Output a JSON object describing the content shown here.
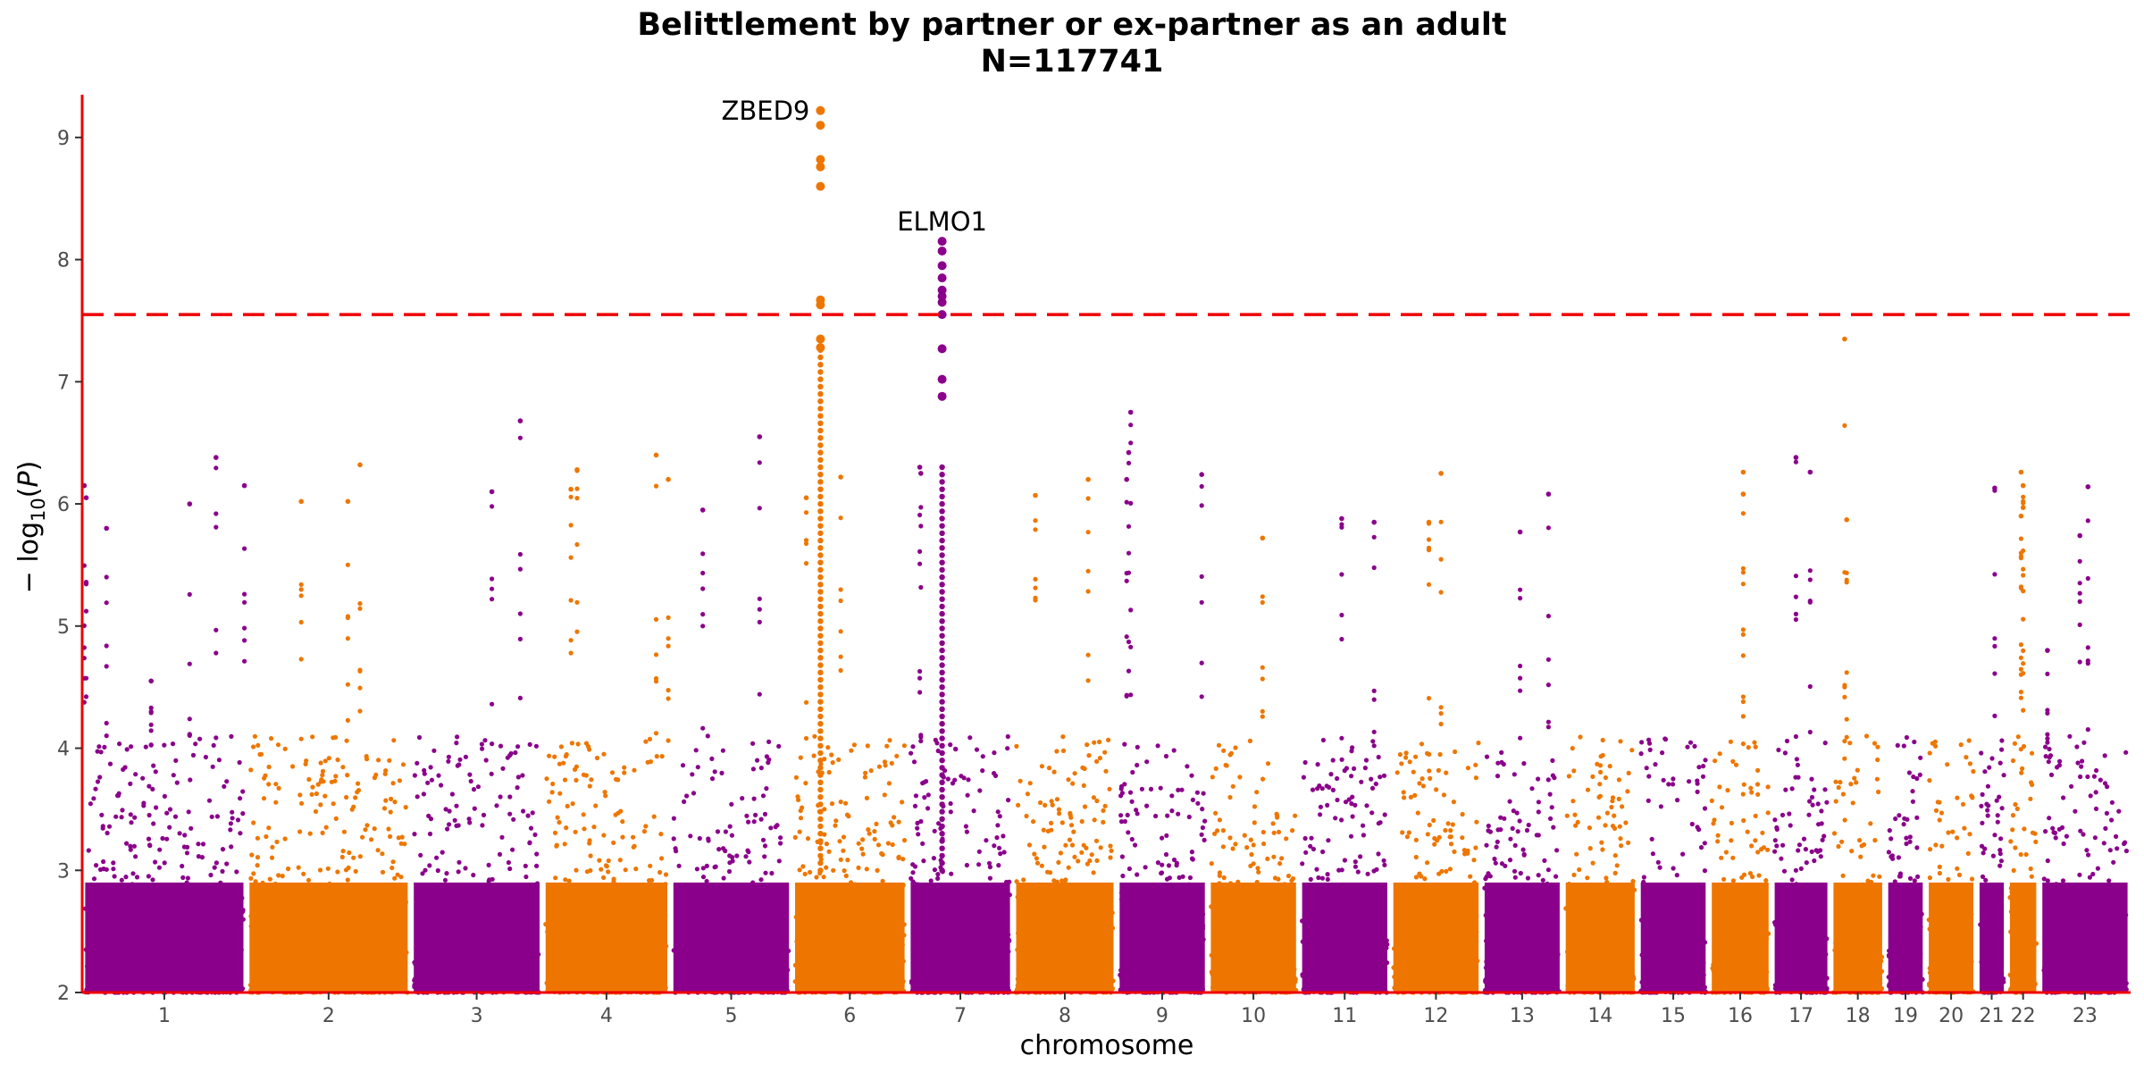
{
  "chart_data": {
    "type": "scatter",
    "subtype": "manhattan",
    "title": "Belittlement by partner or ex-partner as an adult",
    "subtitle": "N=117741",
    "xlabel": "chromosome",
    "ylabel": "− log10(P)",
    "ylim": [
      2,
      9.35
    ],
    "yticks": [
      2,
      3,
      4,
      5,
      6,
      7,
      8,
      9
    ],
    "grid": false,
    "significance_threshold": 7.55,
    "colors": {
      "odd": "#8b008b",
      "even": "#ee7600",
      "threshold": "#ee0000",
      "axis": "#ee0000"
    },
    "chromosomes": [
      {
        "label": "1",
        "start": 0.0,
        "end": 8.1
      },
      {
        "label": "2",
        "start": 8.1,
        "end": 16.2
      },
      {
        "label": "3",
        "start": 16.2,
        "end": 22.7
      },
      {
        "label": "4",
        "start": 22.7,
        "end": 29.0
      },
      {
        "label": "5",
        "start": 29.0,
        "end": 35.0
      },
      {
        "label": "6",
        "start": 35.0,
        "end": 40.7
      },
      {
        "label": "7",
        "start": 40.7,
        "end": 45.9
      },
      {
        "label": "8",
        "start": 45.9,
        "end": 51.0
      },
      {
        "label": "9",
        "start": 51.0,
        "end": 55.5
      },
      {
        "label": "10",
        "start": 55.5,
        "end": 60.0
      },
      {
        "label": "11",
        "start": 60.0,
        "end": 64.5
      },
      {
        "label": "12",
        "start": 64.5,
        "end": 69.0
      },
      {
        "label": "13",
        "start": 69.0,
        "end": 73.0
      },
      {
        "label": "14",
        "start": 73.0,
        "end": 76.7
      },
      {
        "label": "15",
        "start": 76.7,
        "end": 80.2
      },
      {
        "label": "16",
        "start": 80.2,
        "end": 83.3
      },
      {
        "label": "17",
        "start": 83.3,
        "end": 86.2
      },
      {
        "label": "18",
        "start": 86.2,
        "end": 88.9
      },
      {
        "label": "19",
        "start": 88.9,
        "end": 90.9
      },
      {
        "label": "20",
        "start": 90.9,
        "end": 93.4
      },
      {
        "label": "21",
        "start": 93.4,
        "end": 94.9
      },
      {
        "label": "22",
        "start": 94.9,
        "end": 96.5
      },
      {
        "label": "23",
        "start": 96.5,
        "end": 101.0
      }
    ],
    "peaks": [
      {
        "x": 0.1,
        "y": 6.15
      },
      {
        "x": 0.2,
        "y": 6.05
      },
      {
        "x": 1.2,
        "y": 5.8
      },
      {
        "x": 3.4,
        "y": 4.55
      },
      {
        "x": 5.3,
        "y": 6.0
      },
      {
        "x": 6.6,
        "y": 6.38
      },
      {
        "x": 8.0,
        "y": 6.15
      },
      {
        "x": 10.8,
        "y": 6.02
      },
      {
        "x": 13.1,
        "y": 6.02
      },
      {
        "x": 13.7,
        "y": 6.32
      },
      {
        "x": 20.2,
        "y": 6.1
      },
      {
        "x": 21.6,
        "y": 6.68
      },
      {
        "x": 24.1,
        "y": 6.12
      },
      {
        "x": 24.4,
        "y": 6.28
      },
      {
        "x": 28.3,
        "y": 6.4
      },
      {
        "x": 28.9,
        "y": 6.2
      },
      {
        "x": 30.6,
        "y": 5.95
      },
      {
        "x": 33.4,
        "y": 6.55
      },
      {
        "x": 35.7,
        "y": 6.05
      },
      {
        "x": 37.4,
        "y": 6.22
      },
      {
        "x": 41.3,
        "y": 6.3
      },
      {
        "x": 41.35,
        "y": 6.25
      },
      {
        "x": 47.0,
        "y": 6.07
      },
      {
        "x": 49.6,
        "y": 6.2
      },
      {
        "x": 51.7,
        "y": 6.75
      },
      {
        "x": 51.6,
        "y": 6.42
      },
      {
        "x": 51.5,
        "y": 6.2
      },
      {
        "x": 55.2,
        "y": 6.24
      },
      {
        "x": 58.2,
        "y": 5.72
      },
      {
        "x": 62.1,
        "y": 5.88
      },
      {
        "x": 63.7,
        "y": 5.85
      },
      {
        "x": 67.0,
        "y": 6.25
      },
      {
        "x": 66.4,
        "y": 5.85
      },
      {
        "x": 72.3,
        "y": 6.08
      },
      {
        "x": 70.9,
        "y": 5.77
      },
      {
        "x": 81.9,
        "y": 6.26
      },
      {
        "x": 81.9,
        "y": 6.08
      },
      {
        "x": 84.5,
        "y": 6.38
      },
      {
        "x": 85.2,
        "y": 6.26
      },
      {
        "x": 86.9,
        "y": 7.35
      },
      {
        "x": 87.0,
        "y": 5.87
      },
      {
        "x": 94.3,
        "y": 6.13
      },
      {
        "x": 95.6,
        "y": 6.26
      },
      {
        "x": 95.7,
        "y": 6.15
      },
      {
        "x": 95.7,
        "y": 5.97
      },
      {
        "x": 95.6,
        "y": 5.9
      },
      {
        "x": 98.9,
        "y": 6.14
      },
      {
        "x": 98.5,
        "y": 5.74
      },
      {
        "x": 96.9,
        "y": 4.8
      }
    ],
    "towers": [
      {
        "x": 36.4,
        "y": 9.22
      },
      {
        "x": 36.4,
        "y": 9.1
      },
      {
        "x": 36.4,
        "y": 8.82
      },
      {
        "x": 36.4,
        "y": 8.76
      },
      {
        "x": 36.4,
        "y": 8.6
      },
      {
        "x": 36.4,
        "y": 7.67
      },
      {
        "x": 36.4,
        "y": 7.63
      },
      {
        "x": 36.4,
        "y": 7.35
      },
      {
        "x": 36.4,
        "y": 7.28
      },
      {
        "x": 42.4,
        "y": 8.15
      },
      {
        "x": 42.4,
        "y": 8.07
      },
      {
        "x": 42.4,
        "y": 7.95
      },
      {
        "x": 42.4,
        "y": 7.85
      },
      {
        "x": 42.4,
        "y": 7.75
      },
      {
        "x": 42.4,
        "y": 7.7
      },
      {
        "x": 42.4,
        "y": 7.65
      },
      {
        "x": 42.4,
        "y": 7.55
      },
      {
        "x": 42.4,
        "y": 7.27
      },
      {
        "x": 42.4,
        "y": 7.02
      },
      {
        "x": 42.4,
        "y": 6.88
      }
    ],
    "annotations": [
      {
        "text": "ZBED9",
        "x": 36.4,
        "y": 9.22
      },
      {
        "text": "ELMO1",
        "x": 42.4,
        "y": 8.15
      }
    ]
  }
}
